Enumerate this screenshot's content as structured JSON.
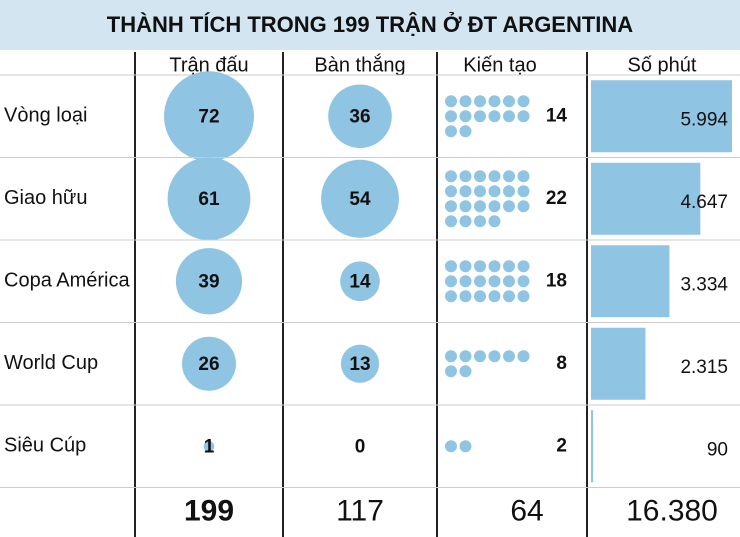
{
  "title": "THÀNH TÍCH TRONG 199 TRẬN Ở ĐT ARGENTINA",
  "columns": [
    "Trận đấu",
    "Bàn thắng",
    "Kiến tạo",
    "Số phút"
  ],
  "rows": [
    {
      "label": "Vòng loại",
      "matches": 72,
      "goals": 36,
      "assists": 14,
      "minutes": {
        "value": 5994,
        "label": "5.994"
      }
    },
    {
      "label": "Giao hữu",
      "matches": 61,
      "goals": 54,
      "assists": 22,
      "minutes": {
        "value": 4647,
        "label": "4.647"
      }
    },
    {
      "label": "Copa América",
      "matches": 39,
      "goals": 14,
      "assists": 18,
      "minutes": {
        "value": 3334,
        "label": "3.334"
      }
    },
    {
      "label": "World Cup",
      "matches": 26,
      "goals": 13,
      "assists": 8,
      "minutes": {
        "value": 2315,
        "label": "2.315"
      }
    },
    {
      "label": "Siêu Cúp",
      "matches": 1,
      "goals": 0,
      "assists": 2,
      "minutes": {
        "value": 90,
        "label": "90"
      }
    }
  ],
  "totals": {
    "matches": 199,
    "goals": 117,
    "assists": 64,
    "minutes": {
      "value": 16380,
      "label": "16.380"
    }
  }
}
